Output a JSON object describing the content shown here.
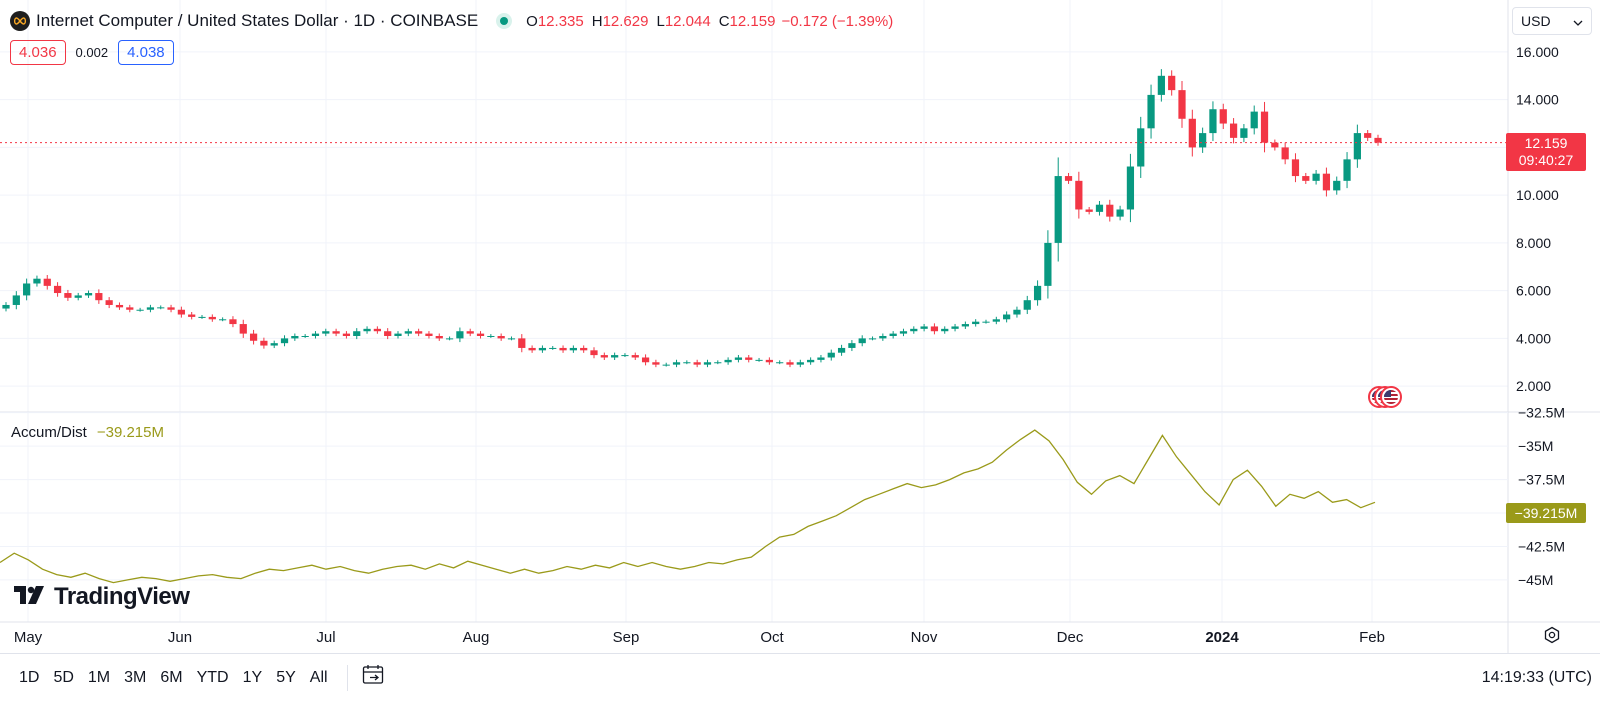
{
  "header": {
    "symbol": "Internet Computer / United States Dollar · 1D · COINBASE",
    "ohlc": [
      {
        "k": "O",
        "v": "12.335"
      },
      {
        "k": "H",
        "v": "12.629"
      },
      {
        "k": "L",
        "v": "12.044"
      },
      {
        "k": "C",
        "v": "12.159"
      }
    ],
    "change": "−0.172 (−1.39%)",
    "bid": "4.036",
    "spread": "0.002",
    "ask": "4.038"
  },
  "currency": "USD",
  "last_price": "12.159",
  "countdown": "09:40:27",
  "indicator": {
    "name": "Accum/Dist",
    "value": "−39.215M",
    "label": "−39.215M"
  },
  "branding": "TradingView",
  "ranges": [
    "1D",
    "5D",
    "1M",
    "3M",
    "6M",
    "YTD",
    "1Y",
    "5Y",
    "All"
  ],
  "clock": "14:19:33 (UTC)",
  "colors": {
    "up": "#089981",
    "down": "#f23645",
    "ad_line": "#9a9a1a",
    "grid": "#f0f3fa"
  },
  "chart_data": [
    {
      "type": "candlestick",
      "ylim": [
        1,
        16.5
      ],
      "yticks": [
        "2.000",
        "4.000",
        "6.000",
        "8.000",
        "10.000",
        "12.000",
        "14.000",
        "16.000"
      ],
      "xtick_labels": [
        "May",
        "Jun",
        "Jul",
        "Aug",
        "Sep",
        "Oct",
        "Nov",
        "Dec",
        "2024",
        "Feb"
      ],
      "grid": true,
      "close_series": [
        5.4,
        5.8,
        6.3,
        6.5,
        6.2,
        5.9,
        5.7,
        5.8,
        5.9,
        5.6,
        5.4,
        5.3,
        5.2,
        5.2,
        5.3,
        5.3,
        5.2,
        5.0,
        4.9,
        4.9,
        4.8,
        4.8,
        4.6,
        4.2,
        3.9,
        3.7,
        3.8,
        4.0,
        4.1,
        4.1,
        4.2,
        4.3,
        4.2,
        4.1,
        4.3,
        4.4,
        4.3,
        4.1,
        4.2,
        4.3,
        4.2,
        4.1,
        4.0,
        4.0,
        4.3,
        4.2,
        4.1,
        4.1,
        4.0,
        4.0,
        3.6,
        3.5,
        3.6,
        3.6,
        3.5,
        3.6,
        3.5,
        3.3,
        3.2,
        3.3,
        3.3,
        3.2,
        3.0,
        2.9,
        2.9,
        3.0,
        3.0,
        2.9,
        3.0,
        3.0,
        3.1,
        3.2,
        3.1,
        3.1,
        3.0,
        3.0,
        2.9,
        3.0,
        3.1,
        3.2,
        3.4,
        3.6,
        3.8,
        4.0,
        4.0,
        4.1,
        4.2,
        4.3,
        4.4,
        4.5,
        4.3,
        4.4,
        4.5,
        4.6,
        4.7,
        4.7,
        4.8,
        5.0,
        5.2,
        5.6,
        6.2,
        8.0,
        10.8,
        10.6,
        9.4,
        9.3,
        9.6,
        9.1,
        9.4,
        11.2,
        12.8,
        14.2,
        15.0,
        14.4,
        13.2,
        12.0,
        12.6,
        13.6,
        13.0,
        12.4,
        12.8,
        13.5,
        12.2,
        12.0,
        11.5,
        10.8,
        10.6,
        10.9,
        10.2,
        10.6,
        11.5,
        12.6,
        12.4,
        12.2
      ]
    },
    {
      "type": "line",
      "name": "Accum/Dist",
      "ylim": [
        -46.5,
        -32.3
      ],
      "yticks": [
        "−32.5M",
        "−35M",
        "−37.5M",
        "−40M",
        "−42.5M",
        "−45M"
      ],
      "values": [
        -43.7,
        -43.0,
        -43.5,
        -44.2,
        -44.6,
        -44.8,
        -44.5,
        -44.9,
        -45.2,
        -45.0,
        -44.8,
        -44.9,
        -45.1,
        -44.9,
        -44.7,
        -44.6,
        -44.8,
        -44.9,
        -44.5,
        -44.2,
        -44.3,
        -44.1,
        -43.9,
        -44.2,
        -44.0,
        -44.3,
        -44.5,
        -44.2,
        -44.0,
        -43.9,
        -44.2,
        -43.8,
        -44.1,
        -43.6,
        -43.9,
        -44.2,
        -44.5,
        -44.2,
        -44.5,
        -44.3,
        -44.0,
        -44.2,
        -43.9,
        -44.1,
        -43.7,
        -44.0,
        -43.7,
        -44.0,
        -44.2,
        -44.0,
        -43.7,
        -43.8,
        -43.5,
        -43.3,
        -42.5,
        -41.8,
        -41.6,
        -41.0,
        -40.6,
        -40.2,
        -39.6,
        -39.0,
        -38.6,
        -38.2,
        -37.8,
        -38.1,
        -37.9,
        -37.5,
        -37.0,
        -36.7,
        -36.2,
        -35.3,
        -34.5,
        -33.8,
        -34.6,
        -36.0,
        -37.7,
        -38.6,
        -37.6,
        -37.2,
        -37.8,
        -36.0,
        -34.2,
        -35.8,
        -37.1,
        -38.4,
        -39.4,
        -37.5,
        -36.8,
        -38.0,
        -39.5,
        -38.6,
        -38.9,
        -38.4,
        -39.2,
        -39.0,
        -39.6,
        -39.2
      ]
    }
  ]
}
